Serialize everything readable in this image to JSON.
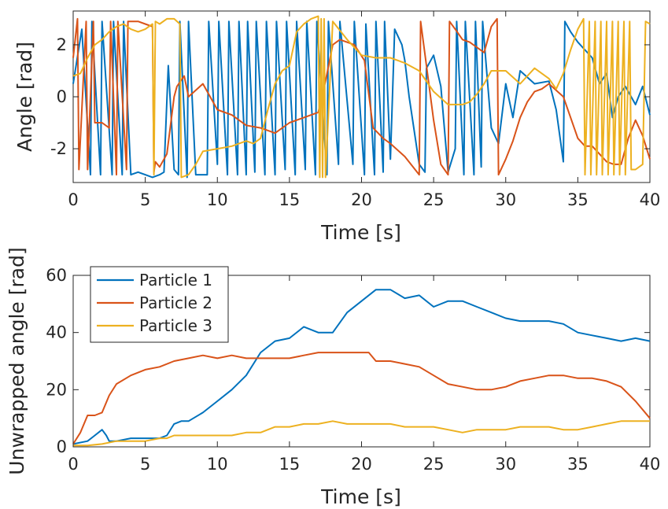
{
  "chart_data": [
    {
      "type": "line",
      "title": "",
      "xlabel": "Time [s]",
      "ylabel": "Angle [rad]",
      "xlim": [
        0,
        40
      ],
      "ylim": [
        -3.3,
        3.3
      ],
      "xticks": [
        0,
        5,
        10,
        15,
        20,
        25,
        30,
        35,
        40
      ],
      "xtick_labels": [
        "0",
        "5",
        "10",
        "15",
        "20",
        "25",
        "30",
        "35",
        "40"
      ],
      "yticks": [
        2,
        0,
        -2
      ],
      "ytick_labels": [
        "2",
        "0",
        "-2"
      ],
      "grid": false,
      "legend": "none",
      "series": [
        {
          "color": "#0072BD",
          "x": [
            0,
            0.6,
            1.2,
            1.3,
            1.9,
            2.0,
            2.7,
            2.8,
            3.4,
            3.5,
            4.0,
            4.5,
            5.0,
            5.5,
            6.0,
            6.3,
            6.6,
            7.0,
            7.3,
            7.4,
            7.9,
            8.0,
            8.5,
            9.3,
            9.4,
            10.0,
            10.1,
            10.7,
            10.8,
            11.4,
            11.5,
            12.0,
            12.1,
            12.6,
            12.7,
            13.3,
            13.4,
            14.0,
            14.1,
            14.7,
            14.8,
            15.4,
            15.5,
            16.1,
            16.2,
            16.8,
            16.9,
            17.6,
            17.7,
            18.4,
            18.5,
            19.4,
            19.5,
            20.2,
            20.3,
            20.9,
            21.0,
            21.5,
            21.6,
            22.0,
            22.3,
            22.8,
            23.0,
            23.3,
            24.0,
            24.4,
            24.5,
            25.0,
            25.5,
            26.0,
            26.5,
            26.6,
            27.1,
            27.2,
            27.8,
            27.9,
            28.3,
            28.4,
            29.0,
            29.5,
            30.0,
            30.5,
            31.0,
            32.0,
            33.0,
            33.5,
            34.0,
            34.1,
            34.5,
            35.0,
            35.5,
            36.0,
            36.5,
            37.0,
            37.4,
            37.8,
            38.3,
            39.0,
            39.5,
            40.0
          ],
          "y": [
            0.5,
            2.6,
            -3.0,
            2.9,
            -3.0,
            2.9,
            -3.0,
            2.9,
            -3.0,
            2.9,
            -3.0,
            -2.9,
            -3.0,
            -3.1,
            -3.0,
            -2.9,
            1.2,
            -2.8,
            -3.0,
            2.9,
            -3.1,
            2.9,
            -3.0,
            -3.0,
            2.9,
            -2.6,
            2.9,
            -3.0,
            2.9,
            -3.0,
            2.9,
            -3.0,
            2.9,
            -2.9,
            2.9,
            -3.0,
            2.9,
            -3.0,
            2.9,
            -2.8,
            2.9,
            -3.0,
            2.9,
            -2.8,
            2.9,
            -3.0,
            2.9,
            -3.0,
            2.9,
            -2.6,
            2.9,
            -2.6,
            2.9,
            -3.0,
            2.8,
            -3.0,
            2.9,
            -2.9,
            2.9,
            -2.4,
            2.6,
            2.0,
            1.4,
            0.0,
            -2.6,
            -2.9,
            1.1,
            1.6,
            0.4,
            -2.9,
            -2.0,
            2.9,
            -3.0,
            2.9,
            -3.0,
            2.9,
            -2.7,
            2.9,
            -1.2,
            -1.8,
            0.5,
            -0.8,
            1.0,
            0.5,
            0.6,
            -0.5,
            -2.5,
            2.9,
            2.5,
            2.1,
            1.8,
            1.5,
            0.5,
            0.9,
            -0.8,
            0.0,
            0.4,
            -0.3,
            0.4,
            -0.7
          ]
        },
        {
          "color": "#D95319",
          "x": [
            0,
            0.3,
            0.4,
            0.9,
            1.0,
            1.4,
            1.5,
            2.0,
            2.5,
            2.6,
            3.0,
            3.1,
            3.7,
            3.8,
            4.5,
            5.0,
            5.5,
            5.6,
            5.7,
            6.0,
            6.5,
            7.0,
            7.2,
            7.7,
            8.0,
            9.0,
            10.0,
            11.0,
            12.0,
            13.0,
            14.0,
            15.0,
            16.0,
            17.0,
            17.5,
            18.0,
            18.5,
            19.5,
            20.2,
            20.8,
            21.5,
            22.0,
            23.0,
            24.0,
            24.1,
            24.5,
            25.0,
            25.5,
            26.0,
            26.1,
            26.5,
            27.0,
            27.5,
            28.0,
            28.5,
            29.0,
            29.4,
            29.5,
            30.0,
            30.5,
            31.0,
            31.5,
            32.0,
            32.5,
            33.0,
            34.0,
            35.0,
            35.5,
            36.0,
            36.5,
            37.0,
            37.5,
            38.0,
            38.5,
            39.0,
            39.5,
            40.0
          ],
          "y": [
            1.5,
            3.0,
            -2.8,
            2.9,
            -2.8,
            2.9,
            -1.0,
            -1.0,
            -1.2,
            2.9,
            -3.0,
            2.9,
            -2.8,
            2.9,
            2.9,
            2.8,
            2.7,
            -2.9,
            -2.5,
            -2.7,
            -2.2,
            0.0,
            0.4,
            0.8,
            0.0,
            0.5,
            -0.5,
            -0.7,
            -1.1,
            -1.2,
            -1.4,
            -1.0,
            -0.8,
            -0.6,
            0.6,
            2.0,
            2.2,
            2.0,
            1.4,
            -1.2,
            -1.6,
            -1.8,
            -2.3,
            -3.0,
            2.9,
            1.2,
            -0.9,
            -2.6,
            -3.0,
            2.9,
            2.6,
            2.2,
            2.1,
            1.9,
            1.7,
            2.7,
            3.0,
            -3.0,
            -2.4,
            -1.7,
            -0.8,
            -0.2,
            0.2,
            0.3,
            0.5,
            0.0,
            -1.6,
            -1.9,
            -1.9,
            -2.2,
            -2.5,
            -2.6,
            -2.6,
            -1.6,
            -0.9,
            -1.5,
            -2.4
          ]
        },
        {
          "color": "#EDB120",
          "x": [
            0,
            0.5,
            1.0,
            1.5,
            2.0,
            2.5,
            3.0,
            3.5,
            4.0,
            4.5,
            5.0,
            5.5,
            5.6,
            5.7,
            6.0,
            6.5,
            7.0,
            7.4,
            7.5,
            8.0,
            8.5,
            9.0,
            10.0,
            11.0,
            12.0,
            12.5,
            13.0,
            13.5,
            14.0,
            14.5,
            15.0,
            15.5,
            16.0,
            16.5,
            17.0,
            17.1,
            17.2,
            17.3,
            17.4,
            17.5,
            18.0,
            19.0,
            20.0,
            21.0,
            22.0,
            23.0,
            24.0,
            25.0,
            26.0,
            27.0,
            27.5,
            28.0,
            28.5,
            29.0,
            30.0,
            31.0,
            32.0,
            33.0,
            33.5,
            34.0,
            34.5,
            35.0,
            35.4,
            35.5,
            35.8,
            35.9,
            36.2,
            36.3,
            36.6,
            36.7,
            37.0,
            37.1,
            37.4,
            37.5,
            37.8,
            37.9,
            38.2,
            38.3,
            38.6,
            38.7,
            39.0,
            39.5,
            39.7,
            40.0
          ],
          "y": [
            0.8,
            0.9,
            1.5,
            2.0,
            2.2,
            2.5,
            2.7,
            2.8,
            2.6,
            2.5,
            2.6,
            2.8,
            -3.0,
            2.9,
            2.8,
            3.0,
            3.0,
            2.8,
            -3.1,
            -3.0,
            -2.6,
            -2.1,
            -2.0,
            -1.9,
            -1.7,
            -1.8,
            -1.6,
            -0.5,
            0.5,
            1.0,
            1.2,
            2.5,
            2.8,
            3.0,
            3.1,
            -3.1,
            3.0,
            -3.1,
            3.0,
            -3.1,
            2.9,
            2.2,
            1.6,
            1.5,
            1.5,
            1.3,
            1.0,
            0.2,
            -0.3,
            -0.3,
            -0.2,
            0.1,
            0.5,
            1.0,
            1.0,
            0.5,
            1.1,
            0.7,
            0.3,
            0.9,
            1.8,
            2.6,
            3.0,
            -3.0,
            2.9,
            -3.0,
            2.9,
            -3.0,
            2.9,
            -3.0,
            2.9,
            -3.0,
            2.9,
            -3.0,
            2.9,
            -3.0,
            2.9,
            -3.0,
            2.9,
            -2.8,
            -2.8,
            -2.6,
            2.9,
            2.8
          ]
        }
      ]
    },
    {
      "type": "line",
      "title": "",
      "xlabel": "Time [s]",
      "ylabel": "Unwrapped angle [rad]",
      "xlim": [
        0,
        40
      ],
      "ylim": [
        0,
        60
      ],
      "xticks": [
        0,
        5,
        10,
        15,
        20,
        25,
        30,
        35,
        40
      ],
      "xtick_labels": [
        "0",
        "5",
        "10",
        "15",
        "20",
        "25",
        "30",
        "35",
        "40"
      ],
      "yticks": [
        0,
        20,
        40,
        60
      ],
      "ytick_labels": [
        "0",
        "20",
        "40",
        "60"
      ],
      "grid": false,
      "legend": "top-left",
      "series": [
        {
          "name": "Particle 1",
          "color": "#0072BD",
          "x": [
            0,
            1.0,
            1.5,
            2.0,
            2.3,
            2.5,
            3.0,
            4.0,
            5.0,
            6.0,
            6.5,
            7.0,
            7.5,
            8.0,
            9.0,
            10.0,
            11.0,
            12.0,
            13.0,
            14.0,
            15.0,
            16.0,
            17.0,
            18.0,
            19.0,
            20.0,
            21.0,
            22.0,
            23.0,
            24.0,
            25.0,
            26.0,
            27.0,
            28.0,
            29.0,
            30.0,
            31.0,
            32.0,
            33.0,
            34.0,
            35.0,
            36.0,
            37.0,
            38.0,
            39.0,
            40.0
          ],
          "y": [
            1,
            2,
            4,
            6,
            4,
            2,
            2,
            3,
            3,
            3,
            4,
            8,
            9,
            9,
            12,
            16,
            20,
            25,
            33,
            37,
            38,
            42,
            40,
            40,
            47,
            51,
            55,
            55,
            52,
            53,
            49,
            51,
            51,
            49,
            47,
            45,
            44,
            44,
            44,
            43,
            40,
            39,
            38,
            37,
            38,
            37
          ]
        },
        {
          "name": "Particle 2",
          "color": "#D95319",
          "x": [
            0,
            0.5,
            1.0,
            1.5,
            2.0,
            2.5,
            3.0,
            4.0,
            5.0,
            6.0,
            7.0,
            8.0,
            9.0,
            10.0,
            11.0,
            12.0,
            13.0,
            14.0,
            15.0,
            16.0,
            17.0,
            18.0,
            19.0,
            20.0,
            20.5,
            21.0,
            22.0,
            23.0,
            24.0,
            25.0,
            26.0,
            27.0,
            28.0,
            29.0,
            30.0,
            31.0,
            32.0,
            33.0,
            34.0,
            35.0,
            36.0,
            37.0,
            38.0,
            39.0,
            40.0
          ],
          "y": [
            1,
            5,
            11,
            11,
            12,
            18,
            22,
            25,
            27,
            28,
            30,
            31,
            32,
            31,
            32,
            31,
            31,
            31,
            31,
            32,
            33,
            33,
            33,
            33,
            33,
            30,
            30,
            29,
            28,
            25,
            22,
            21,
            20,
            20,
            21,
            23,
            24,
            25,
            25,
            24,
            24,
            23,
            21,
            16,
            10
          ]
        },
        {
          "name": "Particle 3",
          "color": "#EDB120",
          "x": [
            0,
            1.0,
            2.0,
            3.0,
            4.0,
            5.0,
            6.0,
            6.5,
            7.0,
            8.0,
            9.0,
            10.0,
            11.0,
            12.0,
            13.0,
            14.0,
            15.0,
            16.0,
            17.0,
            18.0,
            19.0,
            20.0,
            21.0,
            22.0,
            23.0,
            24.0,
            25.0,
            26.0,
            27.0,
            28.0,
            29.0,
            30.0,
            31.0,
            32.0,
            33.0,
            34.0,
            35.0,
            36.0,
            37.0,
            38.0,
            39.0,
            40.0
          ],
          "y": [
            0.5,
            0.5,
            1,
            2,
            2,
            2,
            3,
            3,
            4,
            4,
            4,
            4,
            4,
            5,
            5,
            7,
            7,
            8,
            8,
            9,
            8,
            8,
            8,
            8,
            7,
            7,
            7,
            6,
            5,
            6,
            6,
            6,
            7,
            7,
            7,
            6,
            6,
            7,
            8,
            9,
            9,
            9
          ]
        }
      ]
    }
  ]
}
